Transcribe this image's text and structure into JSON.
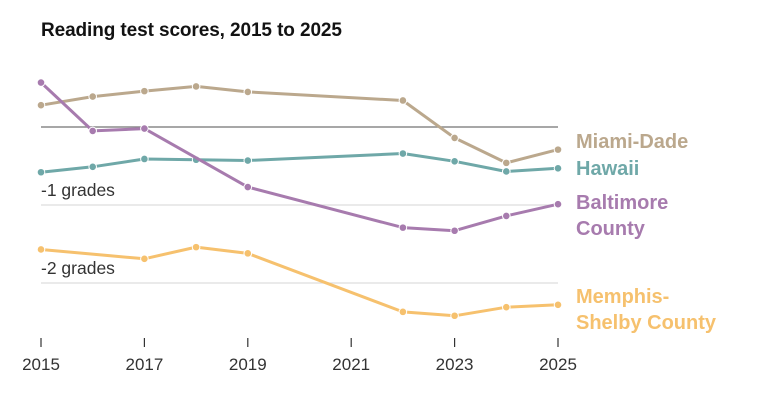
{
  "chart_data": {
    "type": "line",
    "title": "Reading test scores, 2015 to 2025",
    "xlabel": "",
    "ylabel": "",
    "xlim": [
      2015,
      2025
    ],
    "ylim": [
      -2.7,
      0.6
    ],
    "x_ticks": [
      "2015",
      "2017",
      "2019",
      "2021",
      "2023",
      "2025"
    ],
    "reference_lines": [
      {
        "value": 0,
        "label": ""
      },
      {
        "value": -1,
        "label": "-1 grades"
      },
      {
        "value": -2,
        "label": "-2 grades"
      }
    ],
    "grid": false,
    "series": [
      {
        "name": "Miami-Dade",
        "label_lines": [
          "Miami-Dade"
        ],
        "color": "#BBA88D",
        "x": [
          2015,
          2016,
          2017,
          2018,
          2019,
          2022,
          2023,
          2024,
          2025
        ],
        "y": [
          0.28,
          0.39,
          0.46,
          0.52,
          0.45,
          0.34,
          -0.14,
          -0.46,
          -0.29
        ]
      },
      {
        "name": "Hawaii",
        "label_lines": [
          "Hawaii"
        ],
        "color": "#6FA8A8",
        "x": [
          2015,
          2016,
          2017,
          2018,
          2019,
          2022,
          2023,
          2024,
          2025
        ],
        "y": [
          -0.58,
          -0.51,
          -0.41,
          -0.42,
          -0.43,
          -0.34,
          -0.44,
          -0.57,
          -0.53
        ]
      },
      {
        "name": "Baltimore County",
        "label_lines": [
          "Baltimore",
          "County"
        ],
        "color": "#A77BAE",
        "x": [
          2015,
          2016,
          2017,
          2019,
          2022,
          2023,
          2024,
          2025
        ],
        "y": [
          0.57,
          -0.05,
          -0.02,
          -0.77,
          -1.29,
          -1.33,
          -1.14,
          -0.99
        ]
      },
      {
        "name": "Memphis-Shelby County",
        "label_lines": [
          "Memphis-",
          "Shelby County"
        ],
        "color": "#F6C16E",
        "x": [
          2015,
          2017,
          2018,
          2019,
          2022,
          2023,
          2024,
          2025
        ],
        "y": [
          -1.57,
          -1.69,
          -1.54,
          -1.62,
          -2.37,
          -2.42,
          -2.31,
          -2.28
        ]
      }
    ]
  }
}
